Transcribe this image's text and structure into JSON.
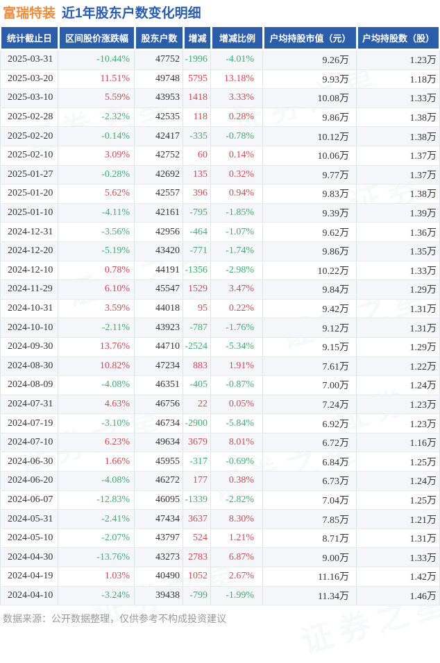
{
  "page": {
    "title_stock": "富瑞特装",
    "title_rest": "近1年股东户数变化明细",
    "footer": "数据来源：公开数据整理，仅供参考不构成投资建议",
    "watermark": "证券之星"
  },
  "colors": {
    "header_bg": "#2b5da9",
    "title_orange": "#ef8b3e",
    "title_blue": "#2a5cae",
    "up_red": "#cd4a50",
    "down_green": "#3fae6e",
    "odd_row_bg": "#f4f6f9"
  },
  "chart_data": {
    "type": "table",
    "title": "富瑞特装 近1年股东户数变化明细",
    "columns": [
      "统计截止日",
      "区间股价涨跌幅",
      "股东户数",
      "增减",
      "增减比例",
      "户均持股市值（元）",
      "户均持股数（股）"
    ],
    "signed_columns": [
      1,
      3,
      4
    ],
    "rows": [
      [
        "2025-03-31",
        "-10.44%",
        "47752",
        "-1996",
        "-4.01%",
        "9.26万",
        "1.23万"
      ],
      [
        "2025-03-20",
        "11.51%",
        "49748",
        "5795",
        "13.18%",
        "9.93万",
        "1.18万"
      ],
      [
        "2025-03-10",
        "5.59%",
        "43953",
        "1418",
        "3.33%",
        "10.08万",
        "1.33万"
      ],
      [
        "2025-02-28",
        "-2.32%",
        "42535",
        "118",
        "0.28%",
        "9.86万",
        "1.38万"
      ],
      [
        "2025-02-20",
        "-0.14%",
        "42417",
        "-335",
        "-0.78%",
        "10.12万",
        "1.38万"
      ],
      [
        "2025-02-10",
        "3.09%",
        "42752",
        "60",
        "0.14%",
        "10.06万",
        "1.37万"
      ],
      [
        "2025-01-27",
        "-0.28%",
        "42692",
        "135",
        "0.32%",
        "9.77万",
        "1.37万"
      ],
      [
        "2025-01-20",
        "5.62%",
        "42557",
        "396",
        "0.94%",
        "9.83万",
        "1.38万"
      ],
      [
        "2025-01-10",
        "-4.11%",
        "42161",
        "-795",
        "-1.85%",
        "9.39万",
        "1.39万"
      ],
      [
        "2024-12-31",
        "-3.56%",
        "42956",
        "-464",
        "-1.07%",
        "9.62万",
        "1.36万"
      ],
      [
        "2024-12-20",
        "-5.19%",
        "43420",
        "-771",
        "-1.74%",
        "9.86万",
        "1.35万"
      ],
      [
        "2024-12-10",
        "0.78%",
        "44191",
        "-1356",
        "-2.98%",
        "10.22万",
        "1.33万"
      ],
      [
        "2024-11-29",
        "6.10%",
        "45547",
        "1529",
        "3.47%",
        "9.84万",
        "1.29万"
      ],
      [
        "2024-10-31",
        "3.59%",
        "44018",
        "95",
        "0.22%",
        "9.42万",
        "1.31万"
      ],
      [
        "2024-10-10",
        "-2.11%",
        "43923",
        "-787",
        "-1.76%",
        "9.12万",
        "1.31万"
      ],
      [
        "2024-09-30",
        "13.76%",
        "44710",
        "-2524",
        "-5.34%",
        "9.15万",
        "1.29万"
      ],
      [
        "2024-08-30",
        "10.82%",
        "47234",
        "883",
        "1.91%",
        "7.61万",
        "1.22万"
      ],
      [
        "2024-08-09",
        "-4.08%",
        "46351",
        "-405",
        "-0.87%",
        "7.00万",
        "1.24万"
      ],
      [
        "2024-07-31",
        "4.63%",
        "46756",
        "22",
        "0.05%",
        "7.24万",
        "1.23万"
      ],
      [
        "2024-07-19",
        "-3.10%",
        "46734",
        "-2900",
        "-5.84%",
        "6.92万",
        "1.23万"
      ],
      [
        "2024-07-10",
        "6.23%",
        "49634",
        "3679",
        "8.01%",
        "6.72万",
        "1.16万"
      ],
      [
        "2024-06-30",
        "1.66%",
        "45955",
        "-317",
        "-0.69%",
        "6.84万",
        "1.25万"
      ],
      [
        "2024-06-20",
        "-4.08%",
        "46272",
        "177",
        "0.38%",
        "6.73万",
        "1.24万"
      ],
      [
        "2024-06-07",
        "-12.83%",
        "46095",
        "-1339",
        "-2.82%",
        "7.04万",
        "1.25万"
      ],
      [
        "2024-05-31",
        "-2.41%",
        "47434",
        "3637",
        "8.30%",
        "7.85万",
        "1.21万"
      ],
      [
        "2024-05-10",
        "-2.07%",
        "43797",
        "524",
        "1.21%",
        "8.71万",
        "1.31万"
      ],
      [
        "2024-04-30",
        "-13.76%",
        "43273",
        "2783",
        "6.87%",
        "9.00万",
        "1.33万"
      ],
      [
        "2024-04-19",
        "1.03%",
        "40490",
        "1052",
        "2.67%",
        "11.16万",
        "1.42万"
      ],
      [
        "2024-04-10",
        "-3.24%",
        "39438",
        "-799",
        "-1.99%",
        "11.34万",
        "1.46万"
      ]
    ]
  }
}
